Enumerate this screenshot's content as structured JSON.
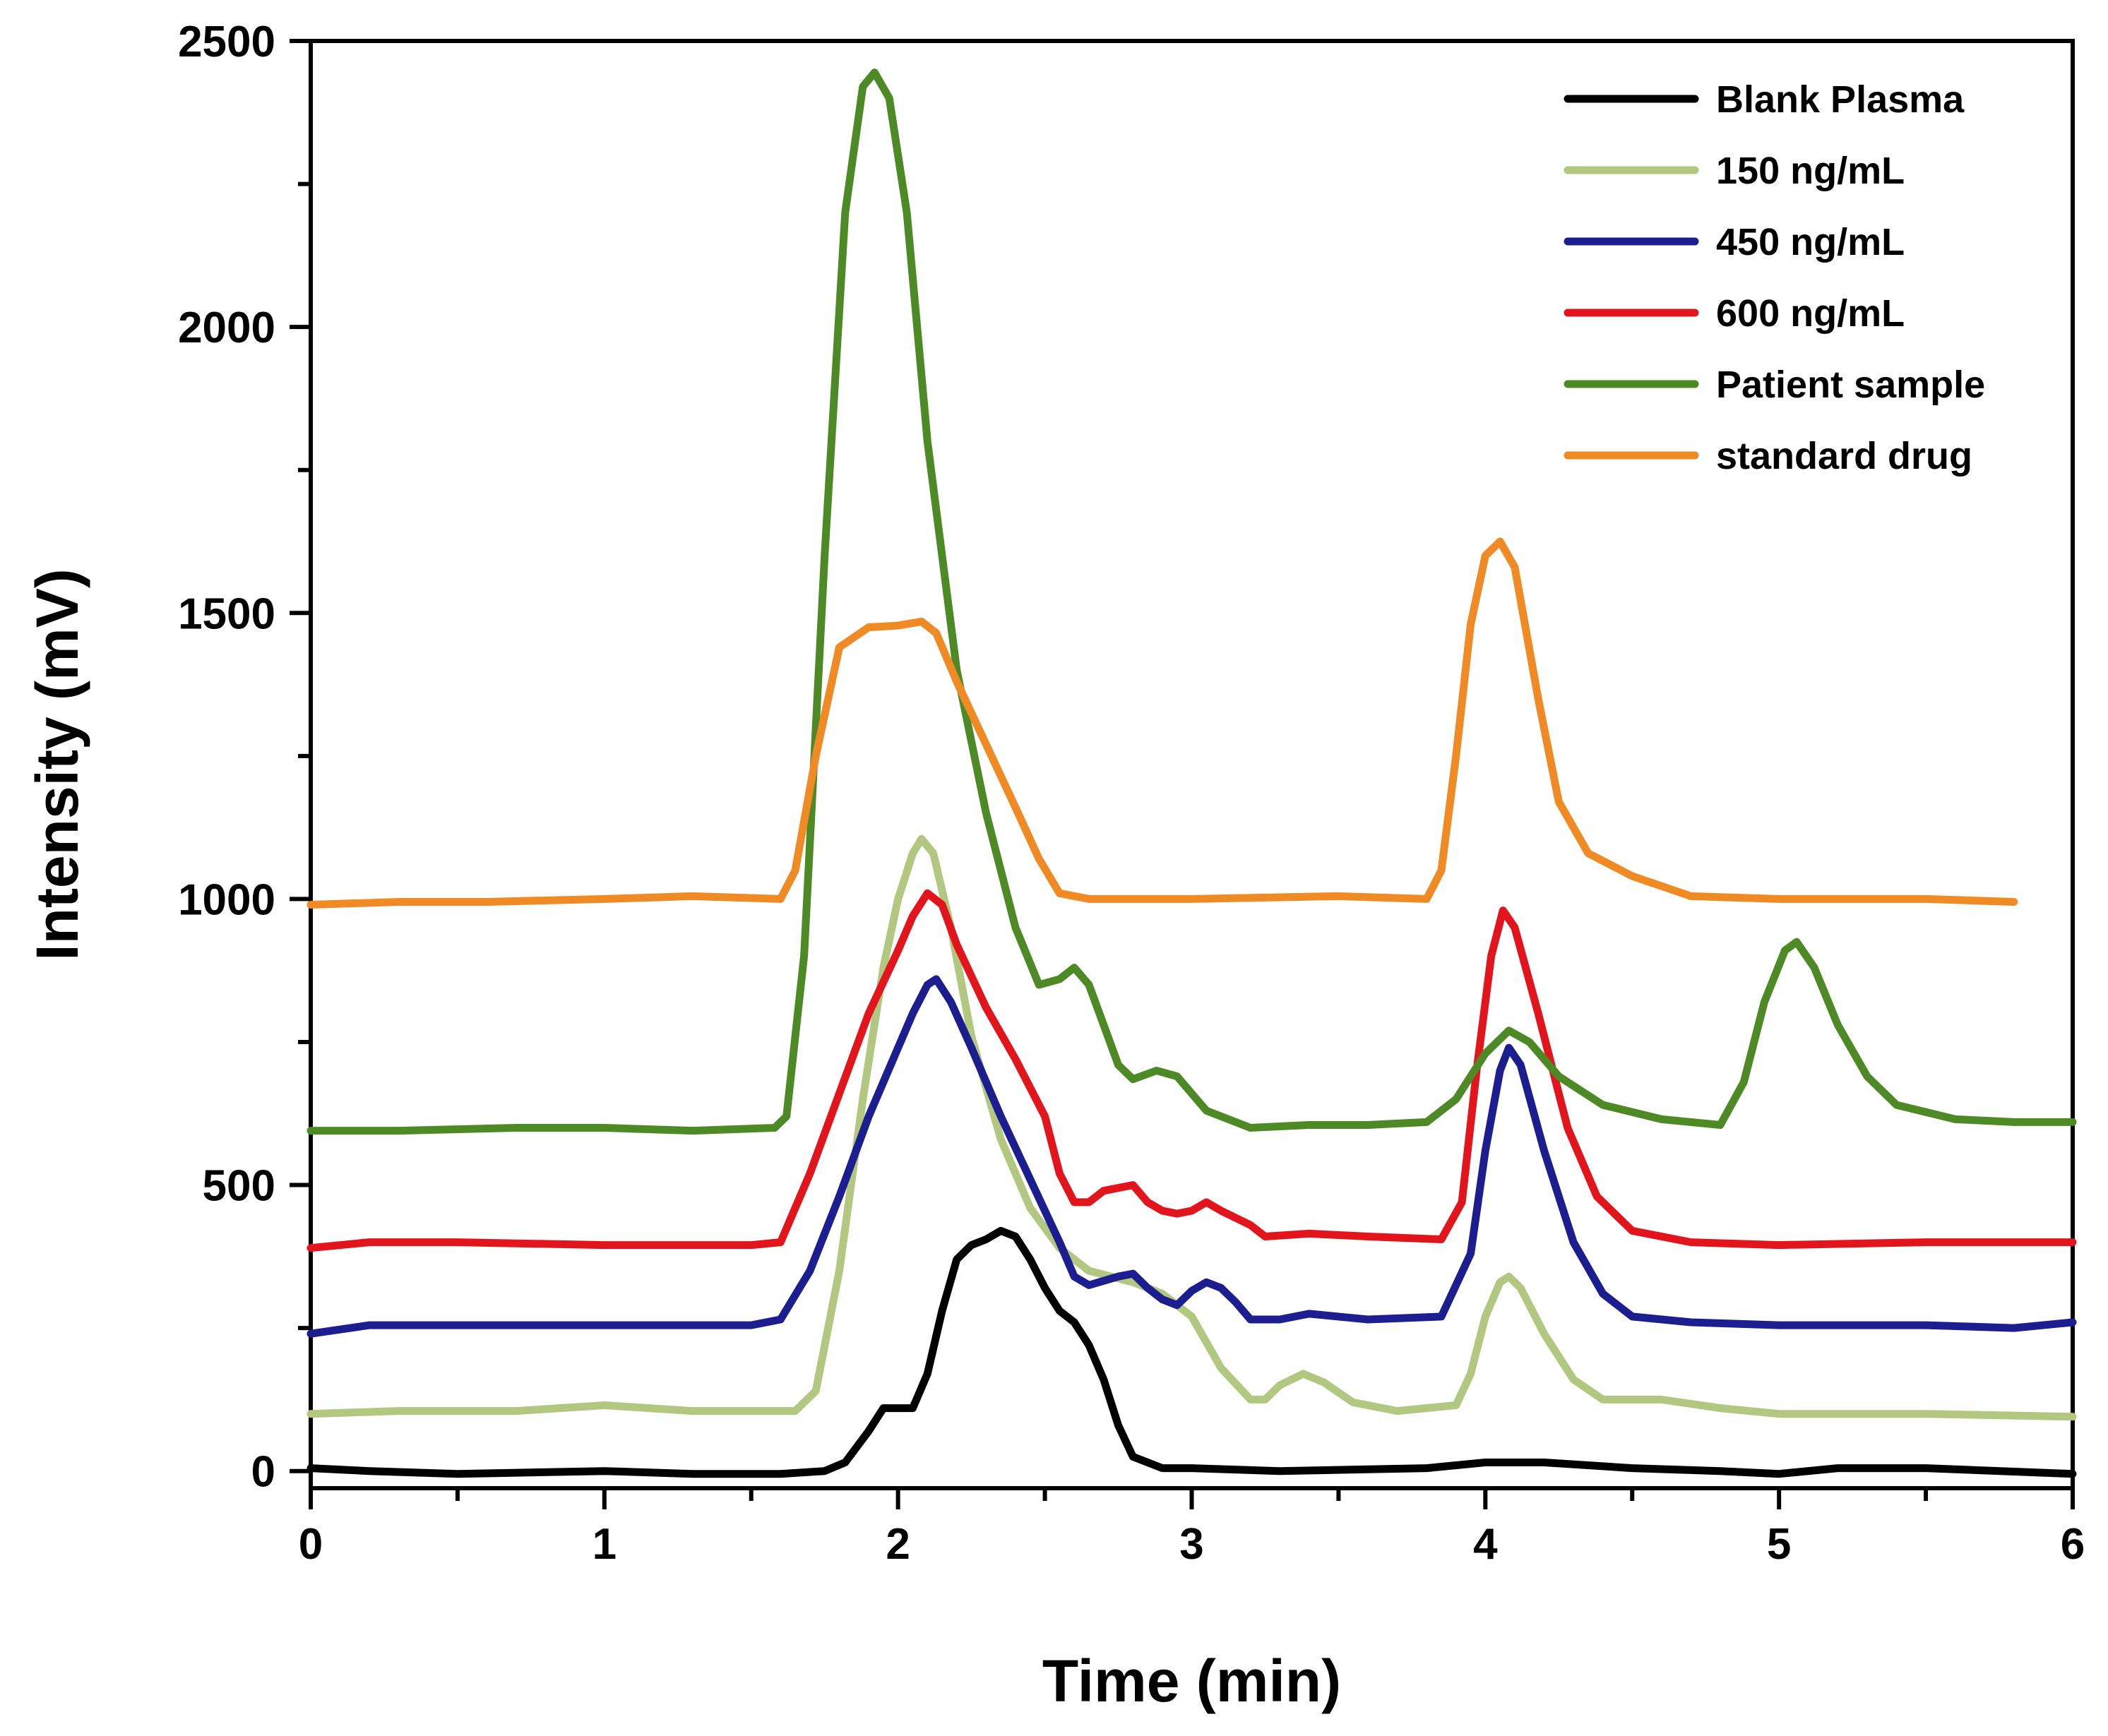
{
  "chart_data": {
    "type": "line",
    "title": "",
    "xlabel": "Time (min)",
    "ylabel": "Intensity (mV)",
    "xlim": [
      0,
      6
    ],
    "ylim": [
      -30,
      2500
    ],
    "xticks": [
      0,
      1,
      2,
      3,
      4,
      5,
      6
    ],
    "xtick_labels": [
      "0",
      "1",
      "2",
      "3",
      "4",
      "5",
      "6"
    ],
    "yticks": [
      0,
      500,
      1000,
      1500,
      2000,
      2500
    ],
    "ytick_labels": [
      "0",
      "500",
      "1000",
      "1500",
      "2000",
      "2500"
    ],
    "legend_position": "top-right",
    "series": [
      {
        "name": "Blank Plasma",
        "color": "#000000",
        "points": [
          [
            0,
            5
          ],
          [
            0.2,
            0
          ],
          [
            0.5,
            -5
          ],
          [
            1,
            0
          ],
          [
            1.3,
            -5
          ],
          [
            1.6,
            -5
          ],
          [
            1.75,
            0
          ],
          [
            1.82,
            15
          ],
          [
            1.9,
            70
          ],
          [
            1.95,
            110
          ],
          [
            2.0,
            110
          ],
          [
            2.05,
            110
          ],
          [
            2.1,
            170
          ],
          [
            2.15,
            280
          ],
          [
            2.2,
            370
          ],
          [
            2.25,
            395
          ],
          [
            2.3,
            405
          ],
          [
            2.35,
            420
          ],
          [
            2.4,
            410
          ],
          [
            2.45,
            370
          ],
          [
            2.5,
            320
          ],
          [
            2.55,
            280
          ],
          [
            2.6,
            260
          ],
          [
            2.65,
            220
          ],
          [
            2.7,
            160
          ],
          [
            2.75,
            80
          ],
          [
            2.8,
            25
          ],
          [
            2.9,
            5
          ],
          [
            3.0,
            5
          ],
          [
            3.3,
            0
          ],
          [
            3.8,
            5
          ],
          [
            4.0,
            15
          ],
          [
            4.2,
            15
          ],
          [
            4.5,
            5
          ],
          [
            4.8,
            0
          ],
          [
            5.0,
            -5
          ],
          [
            5.2,
            5
          ],
          [
            5.5,
            5
          ],
          [
            6.0,
            -5
          ]
        ]
      },
      {
        "name": "150 ng/mL",
        "color": "#b2c77f",
        "points": [
          [
            0,
            100
          ],
          [
            0.3,
            105
          ],
          [
            0.7,
            105
          ],
          [
            1.0,
            115
          ],
          [
            1.3,
            105
          ],
          [
            1.65,
            105
          ],
          [
            1.72,
            140
          ],
          [
            1.8,
            350
          ],
          [
            1.88,
            650
          ],
          [
            1.95,
            880
          ],
          [
            2.0,
            1000
          ],
          [
            2.05,
            1080
          ],
          [
            2.08,
            1105
          ],
          [
            2.12,
            1080
          ],
          [
            2.18,
            950
          ],
          [
            2.25,
            760
          ],
          [
            2.35,
            580
          ],
          [
            2.45,
            460
          ],
          [
            2.55,
            390
          ],
          [
            2.65,
            350
          ],
          [
            2.8,
            330
          ],
          [
            2.9,
            310
          ],
          [
            3.0,
            270
          ],
          [
            3.1,
            180
          ],
          [
            3.2,
            125
          ],
          [
            3.25,
            125
          ],
          [
            3.3,
            150
          ],
          [
            3.38,
            170
          ],
          [
            3.45,
            155
          ],
          [
            3.55,
            120
          ],
          [
            3.7,
            105
          ],
          [
            3.9,
            115
          ],
          [
            3.95,
            170
          ],
          [
            4.0,
            270
          ],
          [
            4.05,
            330
          ],
          [
            4.08,
            340
          ],
          [
            4.12,
            320
          ],
          [
            4.2,
            240
          ],
          [
            4.3,
            160
          ],
          [
            4.4,
            125
          ],
          [
            4.6,
            125
          ],
          [
            4.8,
            110
          ],
          [
            5.0,
            100
          ],
          [
            5.5,
            100
          ],
          [
            6.0,
            95
          ]
        ]
      },
      {
        "name": "450 ng/mL",
        "color": "#1c1d8f",
        "points": [
          [
            0,
            240
          ],
          [
            0.2,
            255
          ],
          [
            0.5,
            255
          ],
          [
            1.0,
            255
          ],
          [
            1.5,
            255
          ],
          [
            1.6,
            265
          ],
          [
            1.7,
            350
          ],
          [
            1.8,
            480
          ],
          [
            1.9,
            620
          ],
          [
            2.0,
            740
          ],
          [
            2.05,
            800
          ],
          [
            2.1,
            850
          ],
          [
            2.13,
            860
          ],
          [
            2.18,
            820
          ],
          [
            2.25,
            740
          ],
          [
            2.35,
            620
          ],
          [
            2.45,
            510
          ],
          [
            2.55,
            400
          ],
          [
            2.6,
            340
          ],
          [
            2.65,
            325
          ],
          [
            2.75,
            340
          ],
          [
            2.8,
            345
          ],
          [
            2.85,
            320
          ],
          [
            2.9,
            300
          ],
          [
            2.95,
            290
          ],
          [
            3.0,
            315
          ],
          [
            3.05,
            330
          ],
          [
            3.1,
            320
          ],
          [
            3.15,
            295
          ],
          [
            3.2,
            265
          ],
          [
            3.3,
            265
          ],
          [
            3.4,
            275
          ],
          [
            3.6,
            265
          ],
          [
            3.85,
            270
          ],
          [
            3.95,
            380
          ],
          [
            4.0,
            560
          ],
          [
            4.05,
            700
          ],
          [
            4.08,
            740
          ],
          [
            4.12,
            710
          ],
          [
            4.2,
            560
          ],
          [
            4.3,
            400
          ],
          [
            4.4,
            310
          ],
          [
            4.5,
            270
          ],
          [
            4.7,
            260
          ],
          [
            5.0,
            255
          ],
          [
            5.5,
            255
          ],
          [
            5.8,
            250
          ],
          [
            6.0,
            260
          ]
        ]
      },
      {
        "name": "600 ng/mL",
        "color": "#e2141c",
        "points": [
          [
            0,
            390
          ],
          [
            0.2,
            400
          ],
          [
            0.5,
            400
          ],
          [
            1.0,
            395
          ],
          [
            1.5,
            395
          ],
          [
            1.6,
            400
          ],
          [
            1.7,
            520
          ],
          [
            1.8,
            660
          ],
          [
            1.9,
            800
          ],
          [
            2.0,
            910
          ],
          [
            2.05,
            970
          ],
          [
            2.1,
            1010
          ],
          [
            2.15,
            990
          ],
          [
            2.2,
            920
          ],
          [
            2.3,
            810
          ],
          [
            2.4,
            720
          ],
          [
            2.5,
            620
          ],
          [
            2.55,
            520
          ],
          [
            2.6,
            470
          ],
          [
            2.65,
            470
          ],
          [
            2.7,
            490
          ],
          [
            2.8,
            500
          ],
          [
            2.85,
            470
          ],
          [
            2.9,
            455
          ],
          [
            2.95,
            450
          ],
          [
            3.0,
            455
          ],
          [
            3.05,
            470
          ],
          [
            3.1,
            455
          ],
          [
            3.2,
            430
          ],
          [
            3.25,
            410
          ],
          [
            3.4,
            415
          ],
          [
            3.6,
            410
          ],
          [
            3.85,
            405
          ],
          [
            3.92,
            470
          ],
          [
            3.97,
            700
          ],
          [
            4.02,
            900
          ],
          [
            4.06,
            980
          ],
          [
            4.1,
            950
          ],
          [
            4.18,
            800
          ],
          [
            4.28,
            600
          ],
          [
            4.38,
            480
          ],
          [
            4.5,
            420
          ],
          [
            4.7,
            400
          ],
          [
            5.0,
            395
          ],
          [
            5.5,
            400
          ],
          [
            6.0,
            400
          ]
        ]
      },
      {
        "name": "Patient sample",
        "color": "#4d8a25",
        "points": [
          [
            0,
            595
          ],
          [
            0.3,
            595
          ],
          [
            0.7,
            600
          ],
          [
            1.0,
            600
          ],
          [
            1.3,
            595
          ],
          [
            1.58,
            600
          ],
          [
            1.62,
            620
          ],
          [
            1.68,
            900
          ],
          [
            1.75,
            1600
          ],
          [
            1.82,
            2200
          ],
          [
            1.88,
            2420
          ],
          [
            1.92,
            2445
          ],
          [
            1.97,
            2400
          ],
          [
            2.03,
            2200
          ],
          [
            2.1,
            1800
          ],
          [
            2.2,
            1400
          ],
          [
            2.3,
            1150
          ],
          [
            2.4,
            950
          ],
          [
            2.48,
            850
          ],
          [
            2.55,
            860
          ],
          [
            2.6,
            880
          ],
          [
            2.65,
            850
          ],
          [
            2.7,
            780
          ],
          [
            2.75,
            710
          ],
          [
            2.8,
            685
          ],
          [
            2.88,
            700
          ],
          [
            2.95,
            690
          ],
          [
            3.05,
            630
          ],
          [
            3.2,
            600
          ],
          [
            3.4,
            605
          ],
          [
            3.6,
            605
          ],
          [
            3.8,
            610
          ],
          [
            3.9,
            650
          ],
          [
            4.0,
            730
          ],
          [
            4.08,
            770
          ],
          [
            4.15,
            750
          ],
          [
            4.25,
            690
          ],
          [
            4.4,
            640
          ],
          [
            4.6,
            615
          ],
          [
            4.8,
            605
          ],
          [
            4.88,
            680
          ],
          [
            4.95,
            820
          ],
          [
            5.02,
            910
          ],
          [
            5.06,
            925
          ],
          [
            5.12,
            880
          ],
          [
            5.2,
            780
          ],
          [
            5.3,
            690
          ],
          [
            5.4,
            640
          ],
          [
            5.6,
            615
          ],
          [
            5.8,
            610
          ],
          [
            6.0,
            610
          ]
        ]
      },
      {
        "name": "standard drug",
        "color": "#f08a24",
        "points": [
          [
            0,
            990
          ],
          [
            0.3,
            995
          ],
          [
            0.6,
            995
          ],
          [
            1.0,
            1000
          ],
          [
            1.3,
            1005
          ],
          [
            1.6,
            1000
          ],
          [
            1.65,
            1050
          ],
          [
            1.72,
            1250
          ],
          [
            1.8,
            1440
          ],
          [
            1.9,
            1475
          ],
          [
            2.0,
            1478
          ],
          [
            2.08,
            1485
          ],
          [
            2.13,
            1465
          ],
          [
            2.2,
            1380
          ],
          [
            2.3,
            1270
          ],
          [
            2.4,
            1160
          ],
          [
            2.48,
            1070
          ],
          [
            2.55,
            1010
          ],
          [
            2.65,
            1000
          ],
          [
            3.0,
            1000
          ],
          [
            3.5,
            1005
          ],
          [
            3.8,
            1000
          ],
          [
            3.85,
            1050
          ],
          [
            3.9,
            1250
          ],
          [
            3.95,
            1480
          ],
          [
            4.0,
            1600
          ],
          [
            4.05,
            1625
          ],
          [
            4.1,
            1580
          ],
          [
            4.18,
            1350
          ],
          [
            4.25,
            1170
          ],
          [
            4.35,
            1080
          ],
          [
            4.5,
            1040
          ],
          [
            4.7,
            1005
          ],
          [
            5.0,
            1000
          ],
          [
            5.5,
            1000
          ],
          [
            5.8,
            995
          ]
        ]
      }
    ]
  }
}
